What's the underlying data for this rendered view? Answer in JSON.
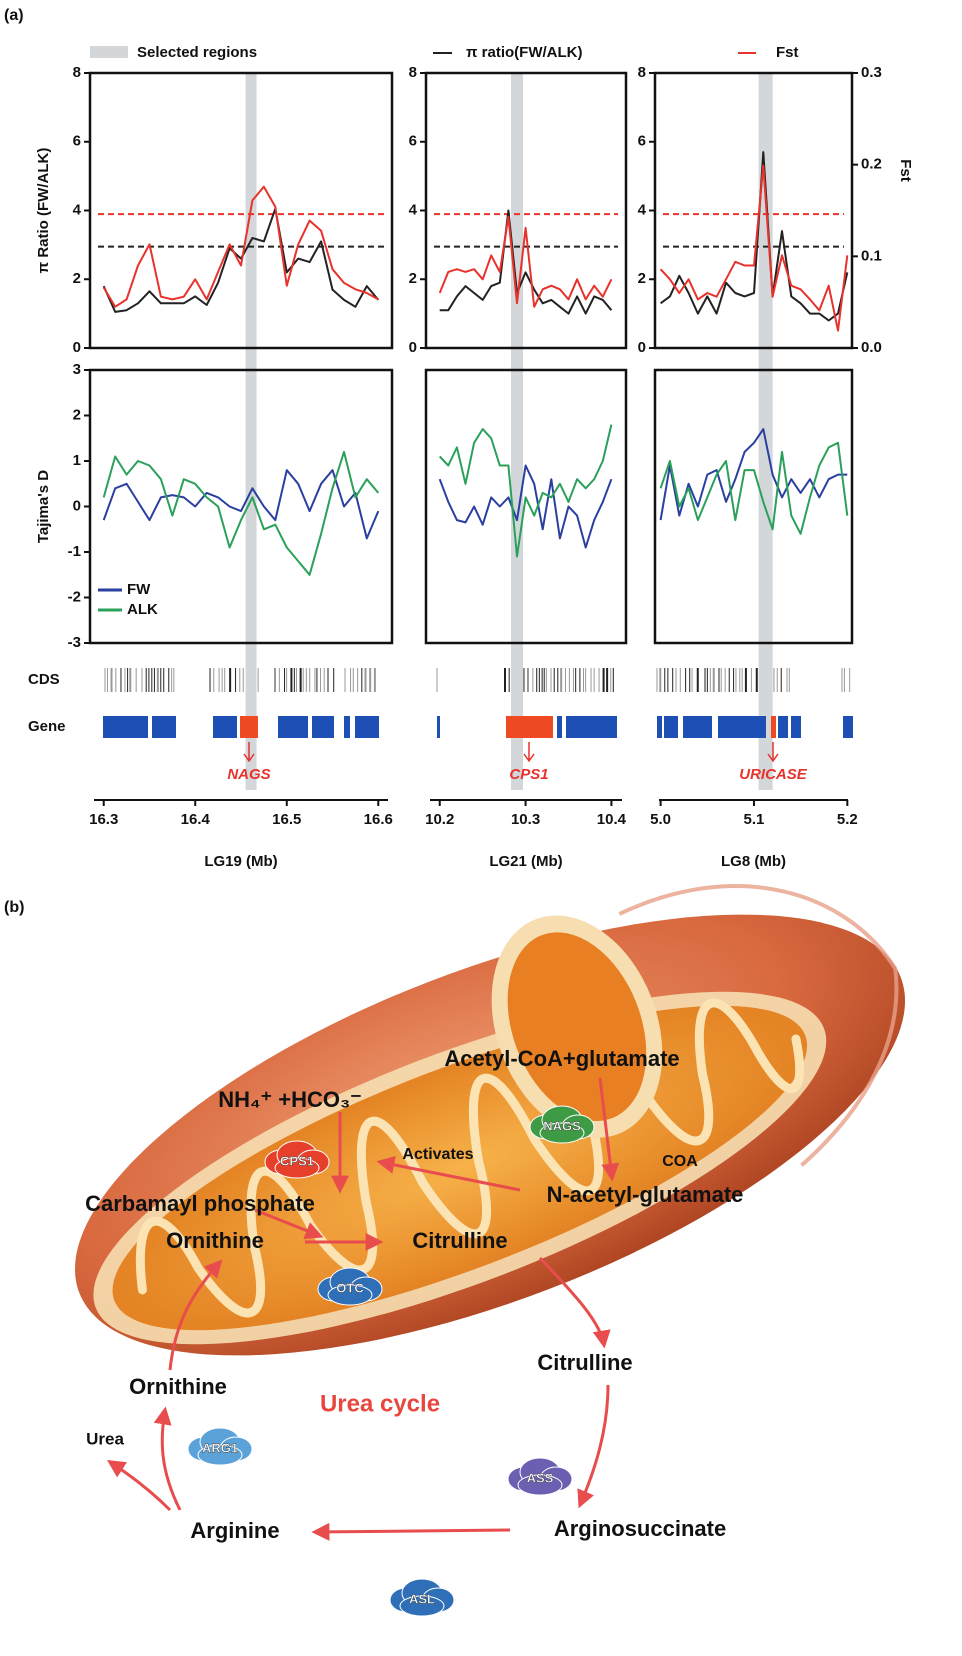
{
  "panel_a_label": "(a)",
  "chart_data": [
    {
      "type": "line",
      "xlabel": "LG19 (Mb)",
      "ylabel": "π Ratio (FW/ALK)",
      "selected_label": "Selected regions",
      "selected_color": "#d3d7da",
      "x": [
        16.3,
        16.3125,
        16.325,
        16.3375,
        16.35,
        16.3625,
        16.375,
        16.3875,
        16.4,
        16.4125,
        16.425,
        16.4375,
        16.45,
        16.4625,
        16.475,
        16.4875,
        16.5,
        16.5125,
        16.525,
        16.5375,
        16.55,
        16.5625,
        16.575,
        16.5875,
        16.6
      ],
      "xlim": [
        16.285,
        16.615
      ],
      "xticks": [
        16.3,
        16.4,
        16.5,
        16.6
      ],
      "ylim": [
        0,
        8
      ],
      "yticks": [
        0,
        2,
        4,
        6,
        8
      ],
      "y2lim": [
        0,
        0.3
      ],
      "selected_region": [
        16.455,
        16.467
      ],
      "thresholds": [
        {
          "value": 2.95,
          "color": "#222222"
        },
        {
          "value": 0.146,
          "axis": "y2",
          "color": "#e8322c"
        }
      ],
      "series": [
        {
          "name": "π ratio(FW/ALK)",
          "color": "#222222",
          "values": [
            1.8,
            1.05,
            1.1,
            1.3,
            1.65,
            1.3,
            1.3,
            1.3,
            1.5,
            1.25,
            1.9,
            2.9,
            2.6,
            3.2,
            3.1,
            4.05,
            2.2,
            2.6,
            2.5,
            3.1,
            1.7,
            1.4,
            1.2,
            1.8,
            1.4
          ]
        },
        {
          "name": "Fst",
          "color": "#e8322c",
          "axis": "y2",
          "values": [
            0.066,
            0.045,
            0.053,
            0.09,
            0.113,
            0.056,
            0.053,
            0.056,
            0.075,
            0.053,
            0.083,
            0.113,
            0.09,
            0.161,
            0.176,
            0.154,
            0.068,
            0.113,
            0.139,
            0.128,
            0.086,
            0.071,
            0.064,
            0.06,
            0.053
          ]
        }
      ]
    },
    {
      "type": "line",
      "xlabel": "LG21 (Mb)",
      "x": [
        10.2,
        10.21,
        10.22,
        10.23,
        10.24,
        10.25,
        10.26,
        10.27,
        10.28,
        10.29,
        10.3,
        10.31,
        10.32,
        10.33,
        10.34,
        10.35,
        10.36,
        10.37,
        10.38,
        10.39,
        10.4
      ],
      "xlim": [
        10.184,
        10.417
      ],
      "xticks": [
        10.2,
        10.3,
        10.4
      ],
      "ylim": [
        0,
        8
      ],
      "yticks": [
        0,
        2,
        4,
        6,
        8
      ],
      "y2lim": [
        0,
        0.3
      ],
      "selected_region": [
        10.283,
        10.297
      ],
      "thresholds": [
        {
          "value": 2.95,
          "color": "#222222"
        },
        {
          "value": 0.146,
          "axis": "y2",
          "color": "#e8322c"
        }
      ],
      "series": [
        {
          "name": "π ratio(FW/ALK)",
          "color": "#222222",
          "values": [
            1.1,
            1.1,
            1.5,
            1.8,
            1.6,
            1.4,
            1.8,
            1.9,
            4.0,
            1.6,
            2.2,
            1.7,
            1.3,
            1.4,
            1.2,
            1.0,
            1.5,
            1.0,
            1.5,
            1.4,
            1.1
          ]
        },
        {
          "name": "Fst",
          "color": "#e8322c",
          "axis": "y2",
          "values": [
            0.06,
            0.083,
            0.086,
            0.083,
            0.086,
            0.075,
            0.101,
            0.083,
            0.143,
            0.049,
            0.131,
            0.045,
            0.064,
            0.068,
            0.064,
            0.053,
            0.075,
            0.053,
            0.068,
            0.056,
            0.075
          ]
        }
      ]
    },
    {
      "type": "line",
      "xlabel": "LG8 (Mb)",
      "y2label": "Fst",
      "x": [
        5.0,
        5.01,
        5.02,
        5.03,
        5.04,
        5.05,
        5.06,
        5.07,
        5.08,
        5.09,
        5.1,
        5.11,
        5.12,
        5.13,
        5.14,
        5.15,
        5.16,
        5.17,
        5.18,
        5.19,
        5.2
      ],
      "xlim": [
        4.994,
        5.205
      ],
      "xticks": [
        {
          "value": 5,
          "label": "5.0"
        },
        5.1,
        5.2
      ],
      "ylim": [
        0,
        8
      ],
      "yticks": [
        0,
        2,
        4,
        6,
        8
      ],
      "y2lim": [
        0,
        0.3
      ],
      "y2ticks": [
        {
          "value": 0,
          "label": "0.0"
        },
        0.1,
        0.2,
        0.3
      ],
      "selected_region": [
        5.105,
        5.12
      ],
      "thresholds": [
        {
          "value": 2.95,
          "color": "#222222"
        },
        {
          "value": 0.146,
          "axis": "y2",
          "color": "#e8322c"
        }
      ],
      "series": [
        {
          "name": "π ratio(FW/ALK)",
          "color": "#222222",
          "values": [
            1.3,
            1.5,
            2.1,
            1.6,
            1.0,
            1.5,
            1.0,
            1.9,
            1.6,
            1.5,
            1.6,
            5.7,
            1.5,
            3.4,
            1.5,
            1.3,
            1.0,
            1.0,
            0.8,
            1.0,
            2.2
          ]
        },
        {
          "name": "Fst",
          "color": "#e8322c",
          "axis": "y2",
          "values": [
            0.086,
            0.075,
            0.06,
            0.075,
            0.053,
            0.06,
            0.056,
            0.075,
            0.094,
            0.09,
            0.09,
            0.199,
            0.056,
            0.101,
            0.068,
            0.064,
            0.053,
            0.041,
            0.068,
            0.019,
            0.101
          ]
        }
      ]
    },
    {
      "type": "line",
      "ylabel": "Tajima's D",
      "x": [
        16.3,
        16.3125,
        16.325,
        16.3375,
        16.35,
        16.3625,
        16.375,
        16.3875,
        16.4,
        16.4125,
        16.425,
        16.4375,
        16.45,
        16.4625,
        16.475,
        16.4875,
        16.5,
        16.5125,
        16.525,
        16.5375,
        16.55,
        16.5625,
        16.575,
        16.5875,
        16.6
      ],
      "xlim": [
        16.285,
        16.615
      ],
      "ylim": [
        -3,
        3
      ],
      "yticks": [
        -3,
        -2,
        -1,
        0,
        1,
        2,
        3
      ],
      "series": [
        {
          "name": "FW",
          "color": "#2a3fa0",
          "values": [
            -0.3,
            0.4,
            0.5,
            0.1,
            -0.3,
            0.2,
            0.25,
            0.2,
            0.0,
            0.3,
            0.2,
            0.0,
            -0.1,
            0.4,
            0.0,
            -0.3,
            0.8,
            0.5,
            -0.1,
            0.5,
            0.8,
            0.0,
            0.3,
            -0.7,
            -0.1
          ]
        },
        {
          "name": "ALK",
          "color": "#2aa05a",
          "values": [
            0.2,
            1.1,
            0.7,
            1.0,
            0.9,
            0.6,
            -0.2,
            0.6,
            0.5,
            0.2,
            0.0,
            -0.9,
            -0.3,
            0.2,
            -0.5,
            -0.4,
            -0.9,
            -1.2,
            -1.5,
            -0.6,
            0.4,
            1.2,
            0.2,
            0.6,
            0.3
          ]
        }
      ]
    },
    {
      "type": "line",
      "x": [
        10.2,
        10.21,
        10.22,
        10.23,
        10.24,
        10.25,
        10.26,
        10.27,
        10.28,
        10.29,
        10.3,
        10.31,
        10.32,
        10.33,
        10.34,
        10.35,
        10.36,
        10.37,
        10.38,
        10.39,
        10.4
      ],
      "xlim": [
        10.184,
        10.417
      ],
      "ylim": [
        -3,
        3
      ],
      "series": [
        {
          "name": "FW",
          "color": "#2a3fa0",
          "values": [
            0.6,
            0.1,
            -0.3,
            -0.35,
            0.0,
            -0.4,
            0.2,
            0.0,
            0.2,
            -0.3,
            0.9,
            0.5,
            -0.5,
            0.6,
            -0.7,
            0.0,
            -0.2,
            -0.9,
            -0.3,
            0.1,
            0.6
          ]
        },
        {
          "name": "ALK",
          "color": "#2aa05a",
          "values": [
            1.1,
            0.9,
            1.3,
            0.5,
            1.4,
            1.7,
            1.5,
            0.9,
            0.9,
            -1.1,
            0.2,
            -0.2,
            0.3,
            0.2,
            0.5,
            0.1,
            0.6,
            0.4,
            0.6,
            1.0,
            1.8
          ]
        }
      ]
    },
    {
      "type": "line",
      "x": [
        5.0,
        5.01,
        5.02,
        5.03,
        5.04,
        5.05,
        5.06,
        5.07,
        5.08,
        5.09,
        5.1,
        5.11,
        5.12,
        5.13,
        5.14,
        5.15,
        5.16,
        5.17,
        5.18,
        5.19,
        5.2
      ],
      "xlim": [
        4.994,
        5.205
      ],
      "ylim": [
        -3,
        3
      ],
      "series": [
        {
          "name": "FW",
          "color": "#2a3fa0",
          "values": [
            -0.3,
            0.9,
            -0.2,
            0.5,
            0.0,
            0.7,
            0.8,
            0.1,
            0.6,
            1.2,
            1.4,
            1.7,
            0.7,
            0.2,
            0.6,
            0.3,
            0.6,
            0.2,
            0.6,
            0.7,
            0.7
          ]
        },
        {
          "name": "ALK",
          "color": "#2aa05a",
          "values": [
            0.4,
            1.0,
            0.0,
            0.4,
            -0.3,
            0.2,
            0.7,
            1.0,
            -0.3,
            0.8,
            0.8,
            0.1,
            -0.5,
            1.2,
            -0.2,
            -0.6,
            0.2,
            0.9,
            1.3,
            1.4,
            -0.2
          ]
        }
      ]
    }
  ],
  "tracks": {
    "cds_label": "CDS",
    "gene_label": "Gene",
    "genes": [
      "NAGS",
      "CPS1",
      "URICASE"
    ]
  },
  "diagram": {
    "label": "(b)",
    "title": "Urea cycle",
    "nodes": [
      "Acetyl-CoA+glutamate",
      "NH₄⁺ +HCO₃⁻",
      "N-acetyl-glutamate",
      "Carbamayl phosphate",
      "Ornithine",
      "Citrulline",
      "Citrulline",
      "Ornithine",
      "Arginosuccinate",
      "Arginine",
      "Urea",
      "Activates",
      "COA"
    ],
    "enzymes": [
      "NAGS",
      "CPS1",
      "OTC",
      "ARG1",
      "ASS",
      "ASL"
    ]
  }
}
